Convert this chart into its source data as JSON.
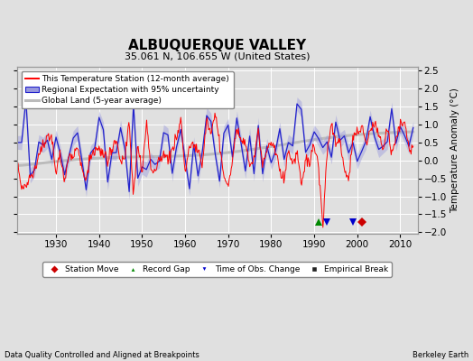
{
  "title": "ALBUQUERQUE VALLEY",
  "subtitle": "35.061 N, 106.655 W (United States)",
  "xlabel_left": "Data Quality Controlled and Aligned at Breakpoints",
  "xlabel_right": "Berkeley Earth",
  "ylabel": "Temperature Anomaly (°C)",
  "xlim": [
    1921,
    2014
  ],
  "ylim": [
    -2.05,
    2.6
  ],
  "yticks": [
    -2,
    -1.5,
    -1,
    -0.5,
    0,
    0.5,
    1,
    1.5,
    2,
    2.5
  ],
  "xticks": [
    1930,
    1940,
    1950,
    1960,
    1970,
    1980,
    1990,
    2000,
    2010
  ],
  "bg_color": "#e0e0e0",
  "plot_bg_color": "#e0e0e0",
  "grid_color": "#ffffff",
  "figsize": [
    5.24,
    4.0
  ],
  "dpi": 100,
  "legend_entries": [
    {
      "label": "This Temperature Station (12-month average)",
      "color": "#ff0000",
      "lw": 1.0
    },
    {
      "label": "Regional Expectation with 95% uncertainty",
      "color": "#2222cc",
      "lw": 1.0
    },
    {
      "label": "Global Land (5-year average)",
      "color": "#aaaaaa",
      "lw": 2.0
    }
  ],
  "marker_events": {
    "station_move": {
      "years": [
        2001
      ],
      "color": "#cc0000",
      "marker": "D",
      "label": "Station Move",
      "size": 5
    },
    "record_gap": {
      "years": [
        1991
      ],
      "color": "#008800",
      "marker": "^",
      "label": "Record Gap",
      "size": 6
    },
    "time_obs_change": {
      "years": [
        1993,
        1999
      ],
      "color": "#0000cc",
      "marker": "v",
      "label": "Time of Obs. Change",
      "size": 6
    },
    "empirical_break": {
      "years": [],
      "color": "#222222",
      "marker": "s",
      "label": "Empirical Break",
      "size": 5
    }
  }
}
